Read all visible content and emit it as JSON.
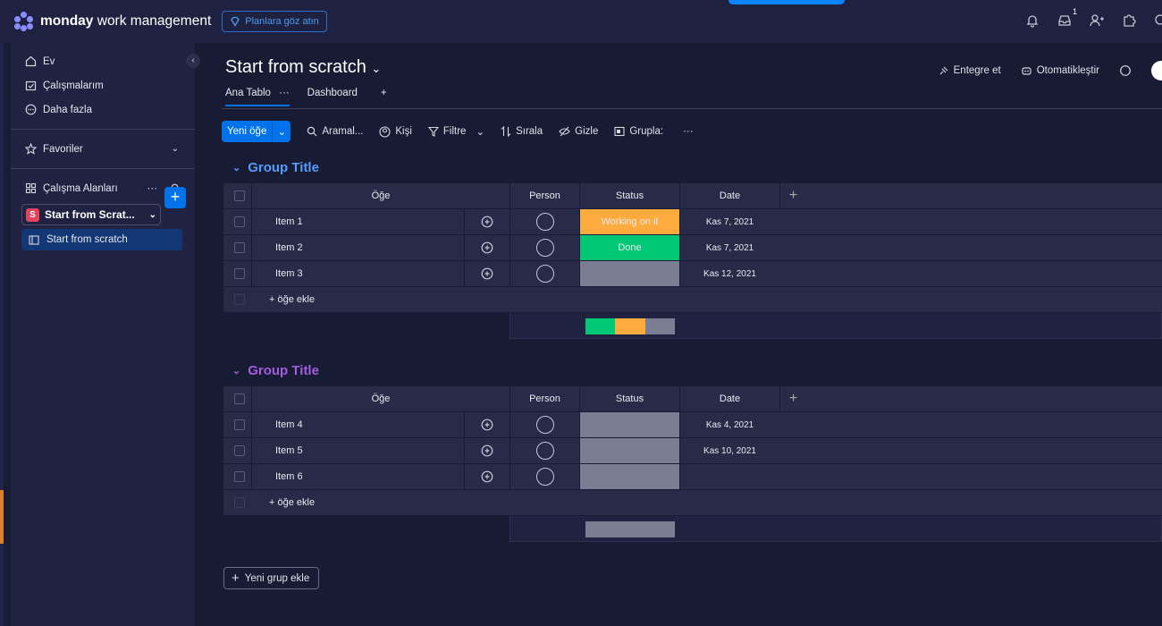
{
  "topbar": {
    "brand_bold": "monday",
    "brand_rest": " work management",
    "plans_label": "Planlara göz atın",
    "inbox_badge": "1"
  },
  "sidebar": {
    "nav": [
      {
        "label": "Ev",
        "icon": "home-icon"
      },
      {
        "label": "Çalışmalarım",
        "icon": "calendar-check-icon"
      },
      {
        "label": "Daha fazla",
        "icon": "more-circle-icon"
      }
    ],
    "favorites_label": "Favoriler",
    "workspaces_label": "Çalışma Alanları",
    "workspace": {
      "letter": "S",
      "name": "Start from Scrat..."
    },
    "board_item": "Start from scratch"
  },
  "board": {
    "title": "Start from scratch",
    "integrate_label": "Entegre et",
    "automate_label": "Otomatikleştir",
    "tabs": [
      "Ana Tablo",
      "Dashboard"
    ],
    "tab_more": "···",
    "tab_add": "+"
  },
  "toolbar": {
    "new_item": "Yeni öğe",
    "search": "Aramal...",
    "person": "Kişi",
    "filter": "Filtre",
    "sort": "Sırala",
    "hide": "Gizle",
    "group": "Grupla:",
    "more": "···"
  },
  "columns": {
    "item": "Öğe",
    "person": "Person",
    "status": "Status",
    "date": "Date",
    "add": "+"
  },
  "groups": [
    {
      "title": "Group Title",
      "color": "#579bfc",
      "items": [
        {
          "name": "Item 1",
          "status": "Working on it",
          "status_color": "#fdab3d",
          "date": "Kas 7, 2021"
        },
        {
          "name": "Item 2",
          "status": "Done",
          "status_color": "#00c875",
          "date": "Kas 7, 2021"
        },
        {
          "name": "Item 3",
          "status": "",
          "status_color": "#797e93",
          "date": "Kas 12, 2021"
        }
      ],
      "add_label": "+ öğe ekle"
    },
    {
      "title": "Group Title",
      "color": "#a25ddc",
      "items": [
        {
          "name": "Item 4",
          "status": "",
          "status_color": "#797e93",
          "date": "Kas 4, 2021"
        },
        {
          "name": "Item 5",
          "status": "",
          "status_color": "#797e93",
          "date": "Kas 10, 2021"
        },
        {
          "name": "Item 6",
          "status": "",
          "status_color": "#797e93",
          "date": ""
        }
      ],
      "add_label": "+ öğe ekle"
    }
  ],
  "add_group_label": "Yeni grup ekle"
}
